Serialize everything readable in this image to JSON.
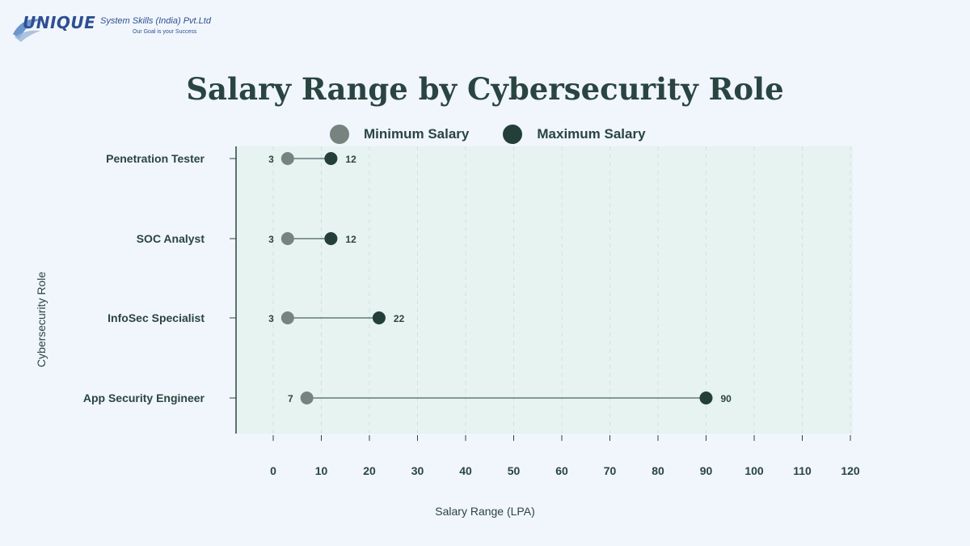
{
  "logo": {
    "wordmark": "UNIQUE",
    "company": "System Skills (India) Pvt.Ltd",
    "tagline": "Our Goal is your Success"
  },
  "colors": {
    "min": "#76837f",
    "max": "#243f3a",
    "plot_bg": "#e6f3f1",
    "text": "#2a4541"
  },
  "chart_data": {
    "type": "dumbbell",
    "title": "Salary Range by Cybersecurity Role",
    "xlabel": "Salary Range (LPA)",
    "ylabel": "Cybersecurity Role",
    "xlim": [
      0,
      120
    ],
    "xticks": [
      0,
      10,
      20,
      30,
      40,
      50,
      60,
      70,
      80,
      90,
      100,
      110,
      120
    ],
    "grid": "vertical dashed",
    "legend_position": "top",
    "categories": [
      "Penetration Tester",
      "SOC Analyst",
      "InfoSec Specialist",
      "App Security Engineer"
    ],
    "series": [
      {
        "name": "Minimum Salary",
        "values": [
          3,
          3,
          3,
          7
        ]
      },
      {
        "name": "Maximum Salary",
        "values": [
          12,
          12,
          22,
          90
        ]
      }
    ]
  }
}
